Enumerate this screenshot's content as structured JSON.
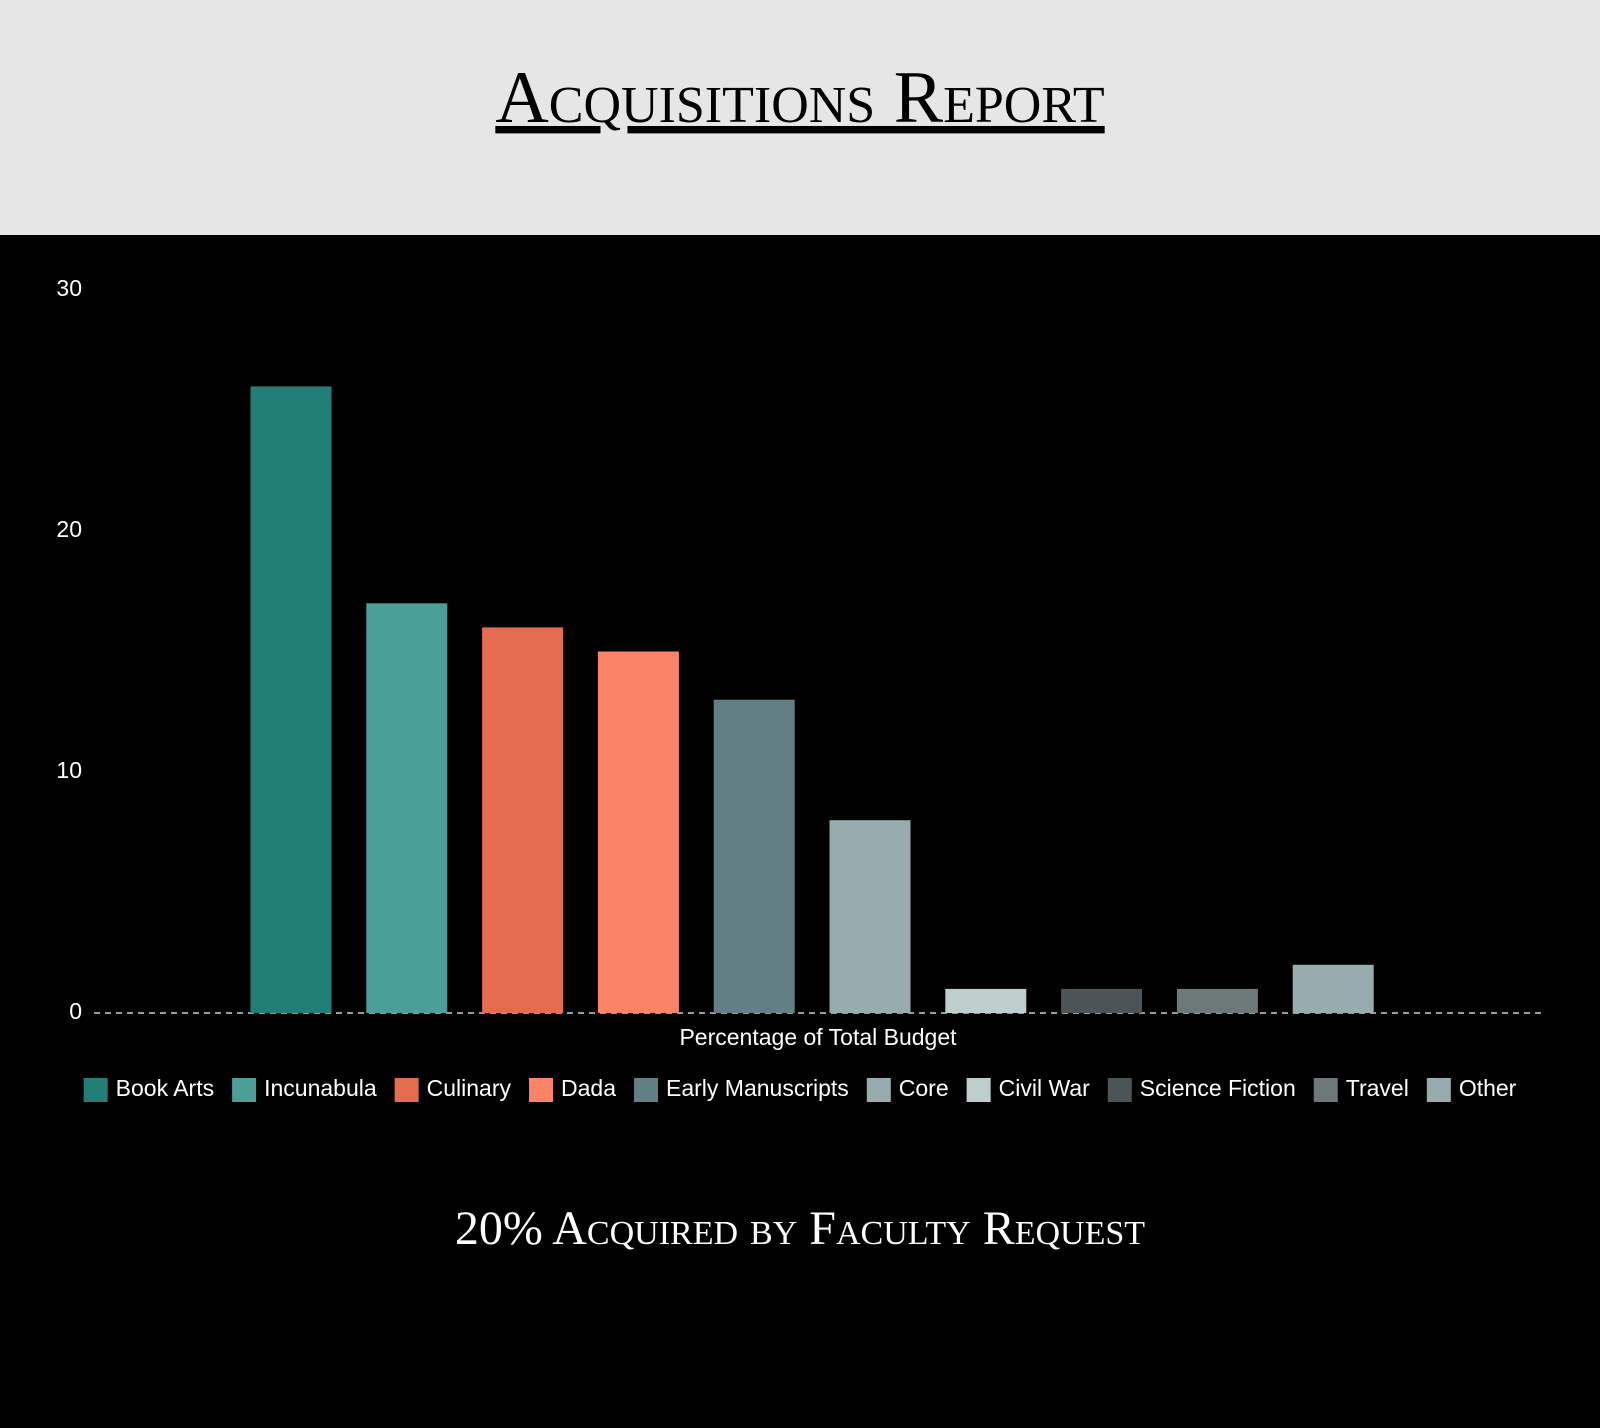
{
  "chart_data": {
    "type": "bar",
    "title": "Acquisitions Report",
    "x_label": "Percentage of Total Budget",
    "footer": "20% Acquired by Faculty Request",
    "categories": [
      "Book Arts",
      "Incunabula",
      "Culinary",
      "Dada",
      "Early Manuscripts",
      "Core",
      "Civil War",
      "Science Fiction",
      "Travel",
      "Other"
    ],
    "values": [
      26,
      17,
      16,
      15,
      13,
      8,
      1,
      1,
      1,
      2
    ],
    "colors": [
      "#217f76",
      "#4aa097",
      "#e66c50",
      "#fb8466",
      "#628083",
      "#98abaf",
      "#bfcdcd",
      "#4b5557",
      "#6d7878",
      "#98abaf"
    ],
    "ylim": [
      0,
      30
    ],
    "yticks": [
      0,
      10,
      20,
      30
    ],
    "grid": false,
    "legend": "bottom"
  }
}
